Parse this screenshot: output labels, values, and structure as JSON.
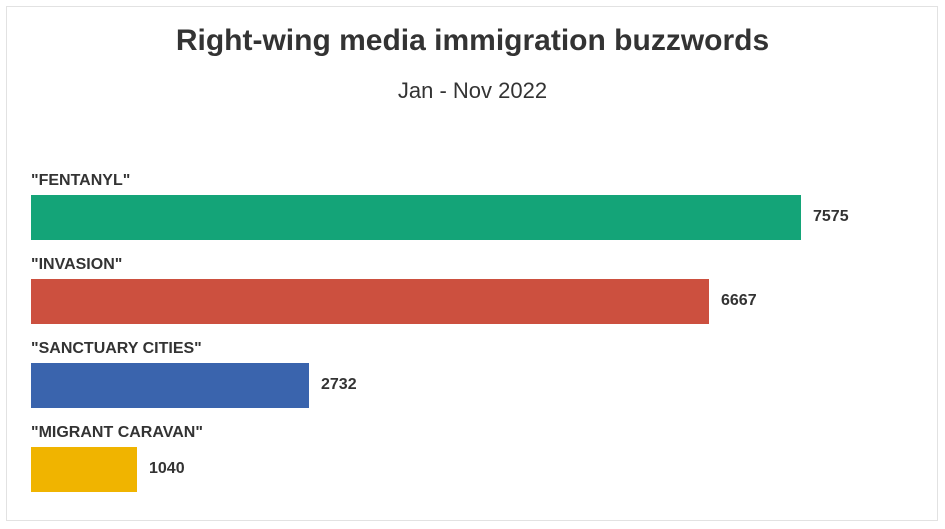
{
  "chart_data": {
    "type": "bar",
    "orientation": "horizontal",
    "title": "Right-wing media immigration buzzwords",
    "subtitle": "Jan - Nov 2022",
    "categories": [
      "\"FENTANYL\"",
      "\"INVASION\"",
      "\"SANCTUARY CITIES\"",
      "\"MIGRANT CARAVAN\""
    ],
    "values": [
      7575,
      6667,
      2732,
      1040
    ],
    "value_labels": [
      "7575",
      "6667",
      "2732",
      "1040"
    ],
    "colors": [
      "#14a478",
      "#cc503f",
      "#3a64ad",
      "#f0b400"
    ],
    "xlim": [
      0,
      7575
    ],
    "xlabel": "",
    "ylabel": "",
    "grid": false,
    "legend": "none"
  }
}
